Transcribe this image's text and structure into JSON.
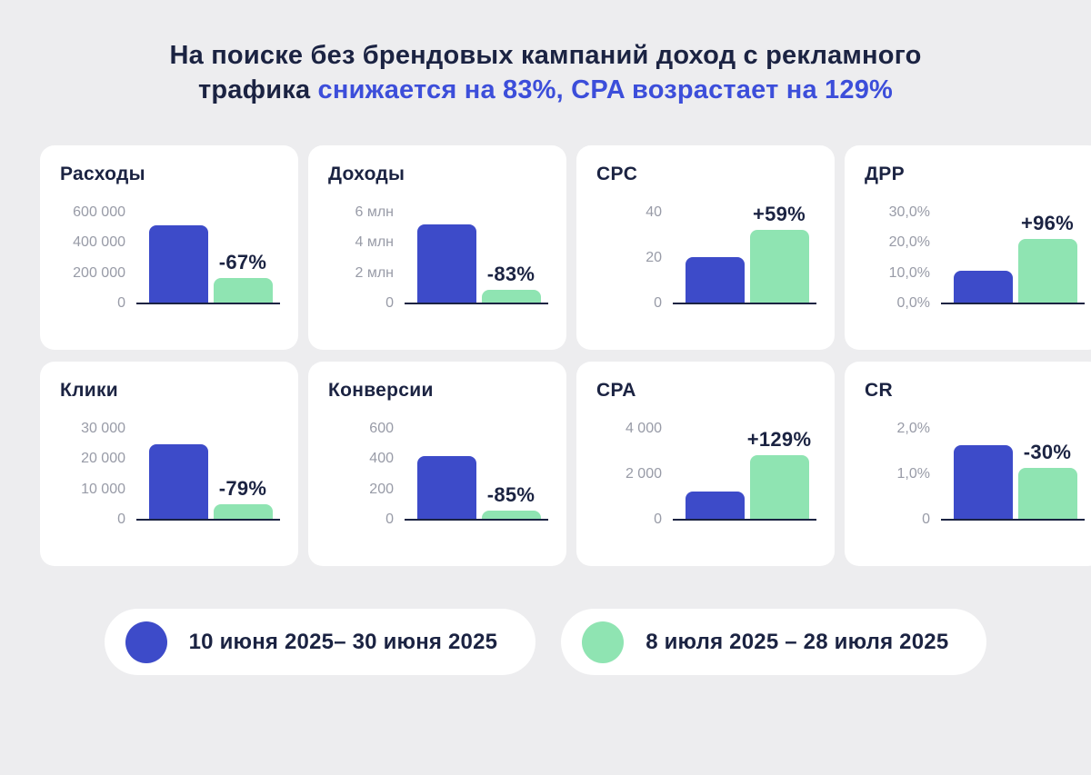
{
  "title": {
    "line1": "На поиске без брендовых кампаний доход с рекламного",
    "line2_dark": "трафика",
    "line2_accent": " снижается на 83%, CPA возрастает на 129%"
  },
  "colors": {
    "page_bg": "#EDEDEF",
    "card_bg": "#FFFFFF",
    "navy": "#1B2342",
    "accent_blue": "#3C4EDA",
    "bar_blue": "#3D4BC9",
    "bar_green": "#8FE4B2",
    "tick_gray": "#989BA7",
    "axis_line": "#1B2342"
  },
  "legend": {
    "items": [
      {
        "label": "10 июня 2025– 30 июня 2025",
        "color": "#3D4BC9",
        "swatch": "blue-circle"
      },
      {
        "label": "8 июля 2025 – 28 июля 2025",
        "color": "#8FE4B2",
        "swatch": "green-circle"
      }
    ]
  },
  "chart_meta": {
    "grid": false,
    "legend_position": "bottom",
    "series_names": [
      "10 июня 2025– 30 июня 2025",
      "8 июля 2025 – 28 июля 2025"
    ],
    "series_colors": [
      "#3D4BC9",
      "#8FE4B2"
    ]
  },
  "chart_data": [
    {
      "type": "bar",
      "title": "Расходы",
      "values": [
        515000,
        170000
      ],
      "yticks": [
        "600 000",
        "400 000",
        "200 000",
        "0"
      ],
      "ylim": [
        0,
        600000
      ],
      "ylabel": "",
      "xlabel": "",
      "annotation": "-67%"
    },
    {
      "type": "bar",
      "title": "Доходы",
      "values": [
        5250000,
        900000
      ],
      "yticks": [
        "6 млн",
        "4 млн",
        "2 млн",
        "0"
      ],
      "ylim": [
        0,
        6000000
      ],
      "ylabel": "",
      "xlabel": "",
      "annotation": "-83%"
    },
    {
      "type": "bar",
      "title": "CPC",
      "values": [
        20.5,
        32.6
      ],
      "yticks": [
        "40",
        "20",
        "0"
      ],
      "ylim": [
        0,
        40
      ],
      "ylabel": "",
      "xlabel": "",
      "annotation": "+59%"
    },
    {
      "type": "bar",
      "title": "ДРР",
      "values": [
        10.8,
        21.2
      ],
      "yticks": [
        "30,0%",
        "20,0%",
        "10,0%",
        "0,0%"
      ],
      "ylim": [
        0,
        30
      ],
      "ylabel": "",
      "xlabel": "",
      "annotation": "+96%"
    },
    {
      "type": "bar",
      "title": "Клики",
      "values": [
        25000,
        5250
      ],
      "yticks": [
        "30 000",
        "20 000",
        "10 000",
        "0"
      ],
      "ylim": [
        0,
        30000
      ],
      "ylabel": "",
      "xlabel": "",
      "annotation": "-79%"
    },
    {
      "type": "bar",
      "title": "Конверсии",
      "values": [
        420,
        63
      ],
      "yticks": [
        "600",
        "400",
        "200",
        "0"
      ],
      "ylim": [
        0,
        600
      ],
      "ylabel": "",
      "xlabel": "",
      "annotation": "-85%"
    },
    {
      "type": "bar",
      "title": "CPA",
      "values": [
        1250,
        2860
      ],
      "yticks": [
        "4 000",
        "2 000",
        "0"
      ],
      "ylim": [
        0,
        4000
      ],
      "ylabel": "",
      "xlabel": "",
      "annotation": "+129%"
    },
    {
      "type": "bar",
      "title": "CR",
      "values": [
        1.65,
        1.15
      ],
      "yticks": [
        "2,0%",
        "1,0%",
        "0"
      ],
      "ylim": [
        0,
        2.0
      ],
      "ylabel": "",
      "xlabel": "",
      "annotation": "-30%"
    }
  ]
}
